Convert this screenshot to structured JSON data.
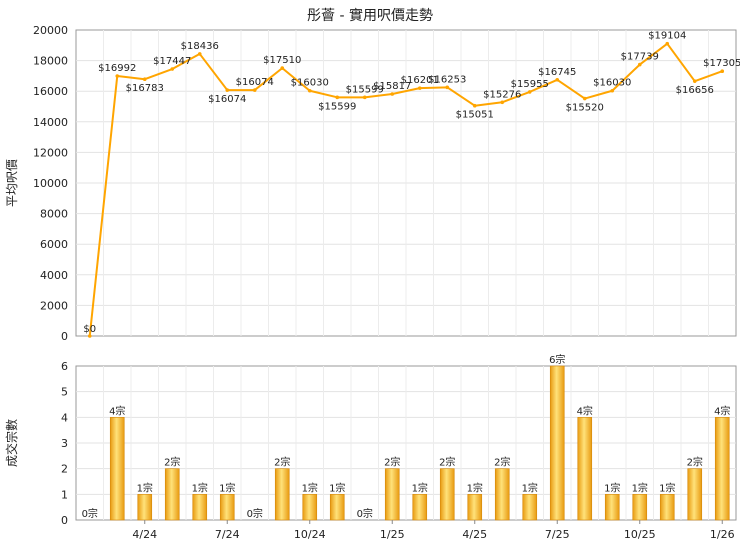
{
  "chart_data": [
    {
      "type": "line",
      "title": "彤薈 - 實用呎價走勢",
      "ylabel": "平均呎價",
      "ylim": [
        0,
        20000
      ],
      "yticks": [
        0,
        2000,
        4000,
        6000,
        8000,
        10000,
        12000,
        14000,
        16000,
        18000,
        20000
      ],
      "grid": true,
      "line_color": "#ffa500",
      "series": [
        {
          "values": [
            0,
            16992,
            16783,
            17447,
            18436,
            16074,
            16074,
            17510,
            16030,
            15599,
            15599,
            15817,
            16201,
            16253,
            15051,
            15276,
            15955,
            16745,
            15520,
            16030,
            17739,
            19104,
            16656,
            17305
          ],
          "labels": [
            "$0",
            "$16992",
            "$16783",
            "$17447",
            "$18436",
            "$16074",
            "$16074",
            "$17510",
            "$16030",
            "$15599",
            "$15599",
            "$15817",
            "$16201",
            "$16253",
            "$15051",
            "$15276",
            "$15955",
            "$16745",
            "$15520",
            "$16030",
            "$17739",
            "$19104",
            "$16656",
            "$17305"
          ]
        }
      ]
    },
    {
      "type": "bar",
      "ylabel": "成交宗數",
      "ylim": [
        0,
        6
      ],
      "yticks": [
        0,
        1,
        2,
        3,
        4,
        5,
        6
      ],
      "grid": true,
      "bar_color": "#f5b21f",
      "series": [
        {
          "values": [
            0,
            4,
            1,
            2,
            1,
            1,
            0,
            2,
            1,
            1,
            0,
            2,
            1,
            2,
            1,
            2,
            1,
            6,
            4,
            1,
            1,
            1,
            2,
            4
          ],
          "labels": [
            "0宗",
            "4宗",
            "1宗",
            "2宗",
            "1宗",
            "1宗",
            "0宗",
            "2宗",
            "1宗",
            "1宗",
            "0宗",
            "2宗",
            "1宗",
            "2宗",
            "1宗",
            "2宗",
            "1宗",
            "6宗",
            "4宗",
            "1宗",
            "1宗",
            "1宗",
            "2宗",
            "4宗"
          ]
        }
      ],
      "xticks": [
        {
          "index": 2,
          "label": "4/24"
        },
        {
          "index": 5,
          "label": "7/24"
        },
        {
          "index": 8,
          "label": "10/24"
        },
        {
          "index": 11,
          "label": "1/25"
        },
        {
          "index": 14,
          "label": "4/25"
        },
        {
          "index": 17,
          "label": "7/25"
        },
        {
          "index": 20,
          "label": "10/25"
        },
        {
          "index": 23,
          "label": "1/26"
        }
      ]
    }
  ]
}
